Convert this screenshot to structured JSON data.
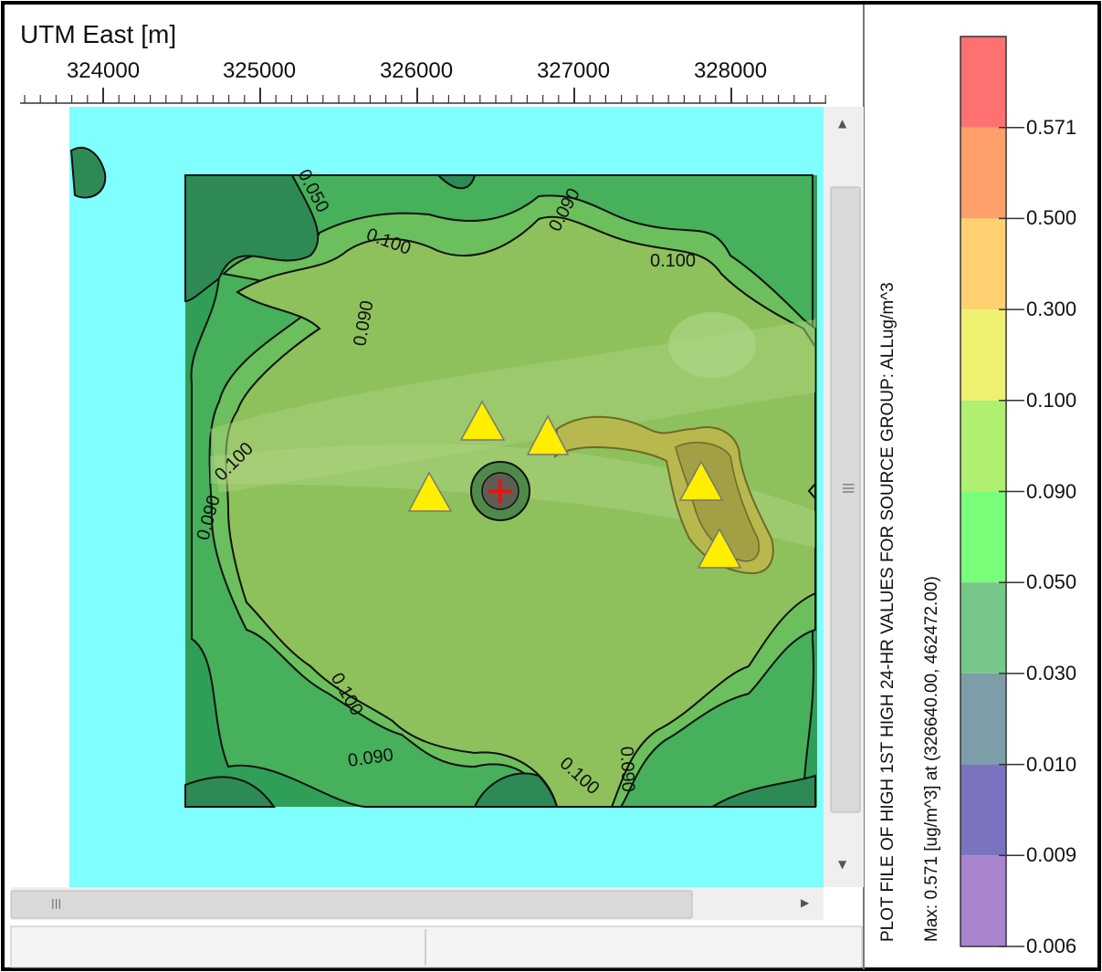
{
  "map": {
    "axis_title": "UTM East [m]",
    "x_ticks": [
      324000,
      325000,
      326000,
      327000,
      328000
    ],
    "contour_labels": [
      "0.050",
      "0.090",
      "0.100",
      "0.100",
      "0.090",
      "0.100",
      "0.090",
      "0.100",
      "0.090",
      "0.100",
      "0.090",
      "0.100",
      "0.090"
    ],
    "max_marker": "plus-icon",
    "sources_icon": "triangle-icon",
    "colors": {
      "background": "#80ffff",
      "low": "#2e9f55",
      "mid": "#5cc060",
      "high": "#8fbf5a",
      "source": "#ffee00"
    }
  },
  "legend": {
    "title_line1": "PLOT FILE OF HIGH 1ST HIGH 24-HR VALUES FOR SOURCE GROUP: ALLug/m^3",
    "title_line2": "Max:  0.571  [ug/m^3]  at  (326640.00, 462472.00)",
    "levels": [
      "0.571",
      "0.500",
      "0.300",
      "0.100",
      "0.090",
      "0.050",
      "0.030",
      "0.010",
      "0.009",
      "0.006"
    ],
    "band_colors": [
      "#ff7070",
      "#ff9f6a",
      "#ffd070",
      "#eef070",
      "#b0f070",
      "#79ff79",
      "#78c78a",
      "#7d9ea8",
      "#7a73c0",
      "#a884cc"
    ]
  },
  "ui": {
    "scroll_up": "▲",
    "scroll_down": "▼",
    "scroll_right": "▶",
    "grip_vertical": "|||",
    "grip_horizontal": "|||"
  }
}
